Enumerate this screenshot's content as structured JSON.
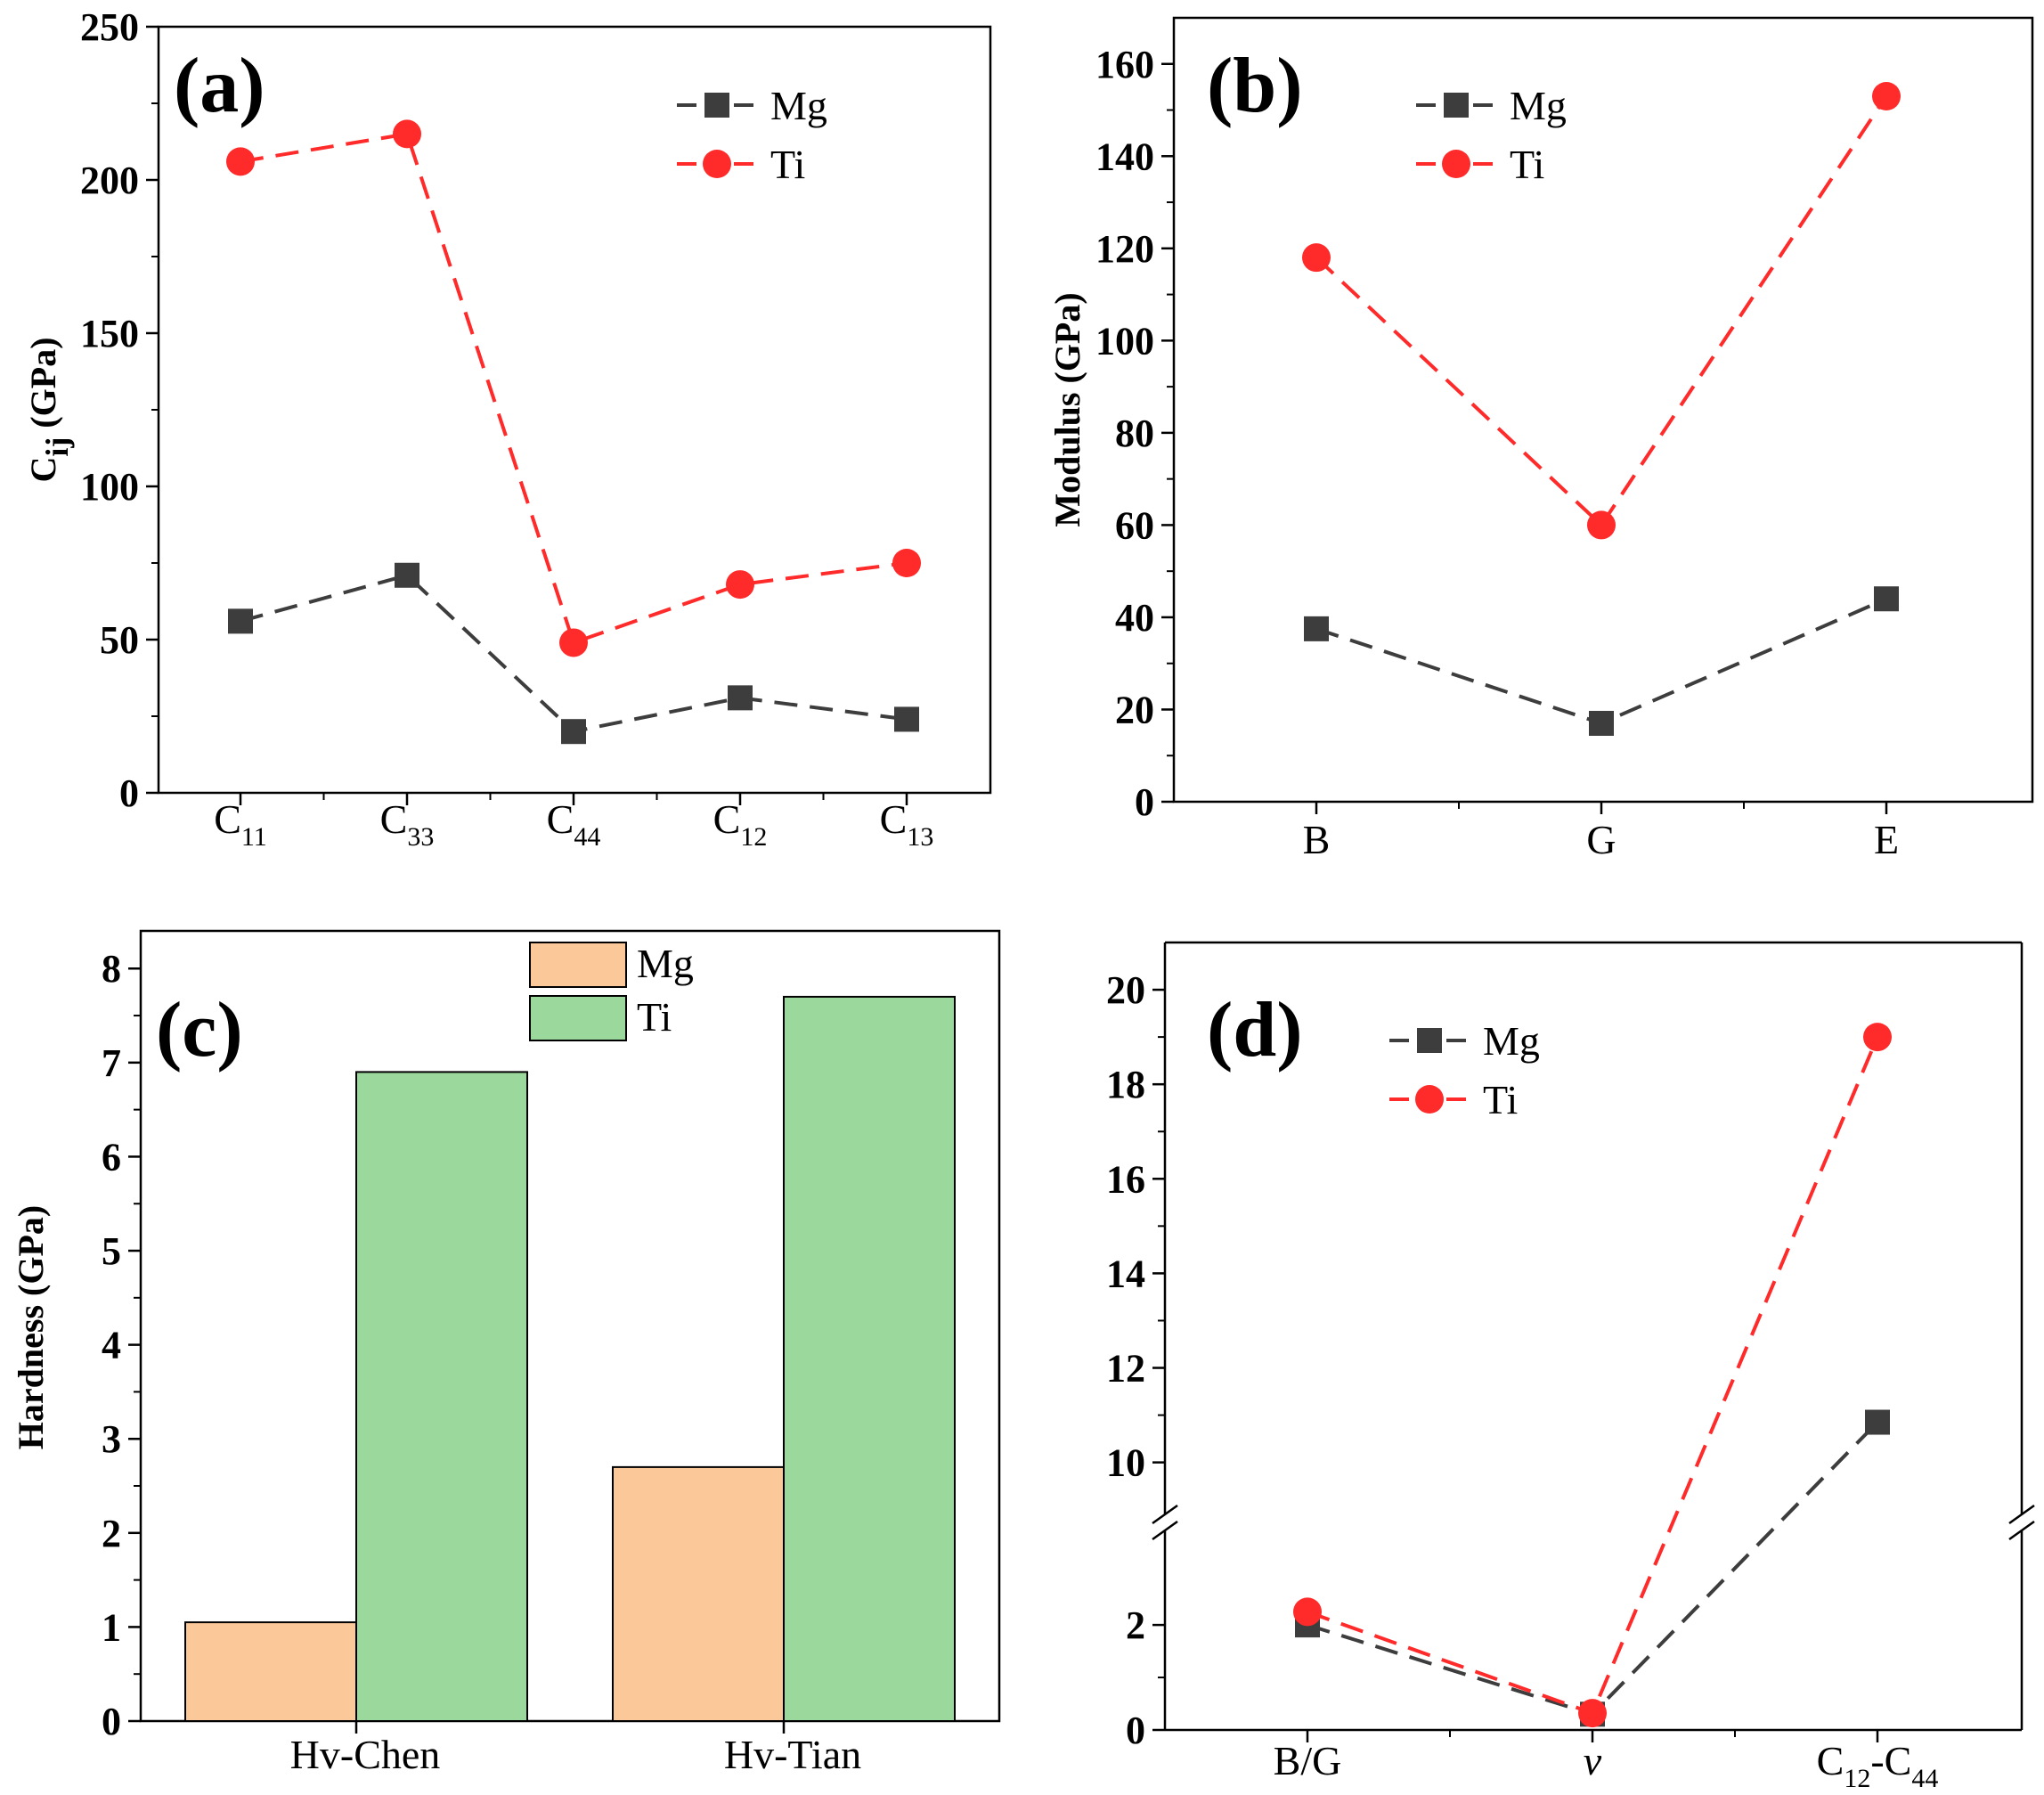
{
  "colors": {
    "mg_line": "#3d3d3d",
    "ti_line": "#ff2a2a",
    "mg_bar": "#fbc89a",
    "ti_bar": "#9bd89b"
  },
  "chart_data": [
    {
      "panel": "(a)",
      "type": "line",
      "ylabel_main": "C",
      "ylabel_sub": "ij",
      "ylabel_unit": "(GPa)",
      "ylim": [
        0,
        250
      ],
      "yticks": [
        0,
        50,
        100,
        150,
        200,
        250
      ],
      "categories": [
        {
          "main": "C",
          "sub": "11"
        },
        {
          "main": "C",
          "sub": "33"
        },
        {
          "main": "C",
          "sub": "44"
        },
        {
          "main": "C",
          "sub": "12"
        },
        {
          "main": "C",
          "sub": "13"
        }
      ],
      "legend": "top-right",
      "series": [
        {
          "name": "Mg",
          "values": [
            56,
            71,
            20,
            31,
            24
          ]
        },
        {
          "name": "Ti",
          "values": [
            206,
            215,
            49,
            68,
            75
          ]
        }
      ]
    },
    {
      "panel": "(b)",
      "type": "line",
      "ylabel": "Modulus (GPa)",
      "ylim": [
        0,
        170
      ],
      "yticks": [
        0,
        20,
        40,
        60,
        80,
        100,
        120,
        140,
        160
      ],
      "categories": [
        "B",
        "G",
        "E"
      ],
      "legend": "top-left",
      "series": [
        {
          "name": "Mg",
          "values": [
            37.5,
            17,
            44
          ]
        },
        {
          "name": "Ti",
          "values": [
            118,
            60,
            153
          ]
        }
      ]
    },
    {
      "panel": "(c)",
      "type": "bar",
      "ylabel": "Hardness (GPa)",
      "ylim": [
        0,
        8.4
      ],
      "yticks": [
        0,
        1,
        2,
        3,
        4,
        5,
        6,
        7,
        8
      ],
      "categories": [
        "Hv-Chen",
        "Hv-Tian"
      ],
      "legend": "top-center",
      "series": [
        {
          "name": "Mg",
          "values": [
            1.05,
            2.7
          ]
        },
        {
          "name": "Ti",
          "values": [
            6.9,
            7.7
          ]
        }
      ]
    },
    {
      "panel": "(d)",
      "type": "line",
      "axis_break": true,
      "ylim_lower": [
        0,
        3.8
      ],
      "ylim_upper": [
        8.9,
        21
      ],
      "yticks_lower": [
        0,
        2
      ],
      "yticks_upper": [
        10,
        12,
        14,
        16,
        18,
        20
      ],
      "categories": [
        {
          "main": "B/G"
        },
        {
          "main": "v",
          "italic": true
        },
        {
          "main": "C",
          "sub": "12",
          "post": "-C",
          "sub2": "44"
        }
      ],
      "legend": "top-left",
      "series": [
        {
          "name": "Mg",
          "values": [
            2.0,
            0.3,
            10.85
          ]
        },
        {
          "name": "Ti",
          "values": [
            2.25,
            0.32,
            19.0
          ]
        }
      ]
    }
  ]
}
